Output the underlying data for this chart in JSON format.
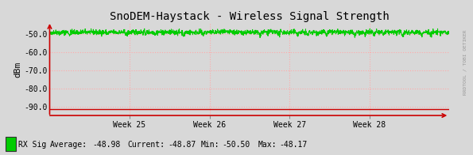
{
  "title": "SnoDEM-Haystack - Wireless Signal Strength",
  "ylabel": "dBm",
  "background_color": "#d8d8d8",
  "plot_bg_color": "#d8d8d8",
  "ylim": [
    -95,
    -44
  ],
  "yticks": [
    -90.0,
    -80.0,
    -70.0,
    -60.0,
    -50.0
  ],
  "week_labels": [
    "Week 25",
    "Week 26",
    "Week 27",
    "Week 28"
  ],
  "signal_mean": -48.98,
  "signal_noise": 0.7,
  "noise_floor": -91.5,
  "line_color": "#00cc00",
  "noise_color": "#cc0000",
  "grid_color": "#ffaaaa",
  "legend_label": "RX Sig",
  "legend_color": "#00cc00",
  "avg_val": "-48.98",
  "cur_val": "-48.87",
  "min_val": "-50.50",
  "max_val": "-48.17",
  "rrdtool_text": "RRDTOOL / TOBI OETIKER",
  "title_fontsize": 10,
  "axis_fontsize": 7,
  "legend_fontsize": 7
}
